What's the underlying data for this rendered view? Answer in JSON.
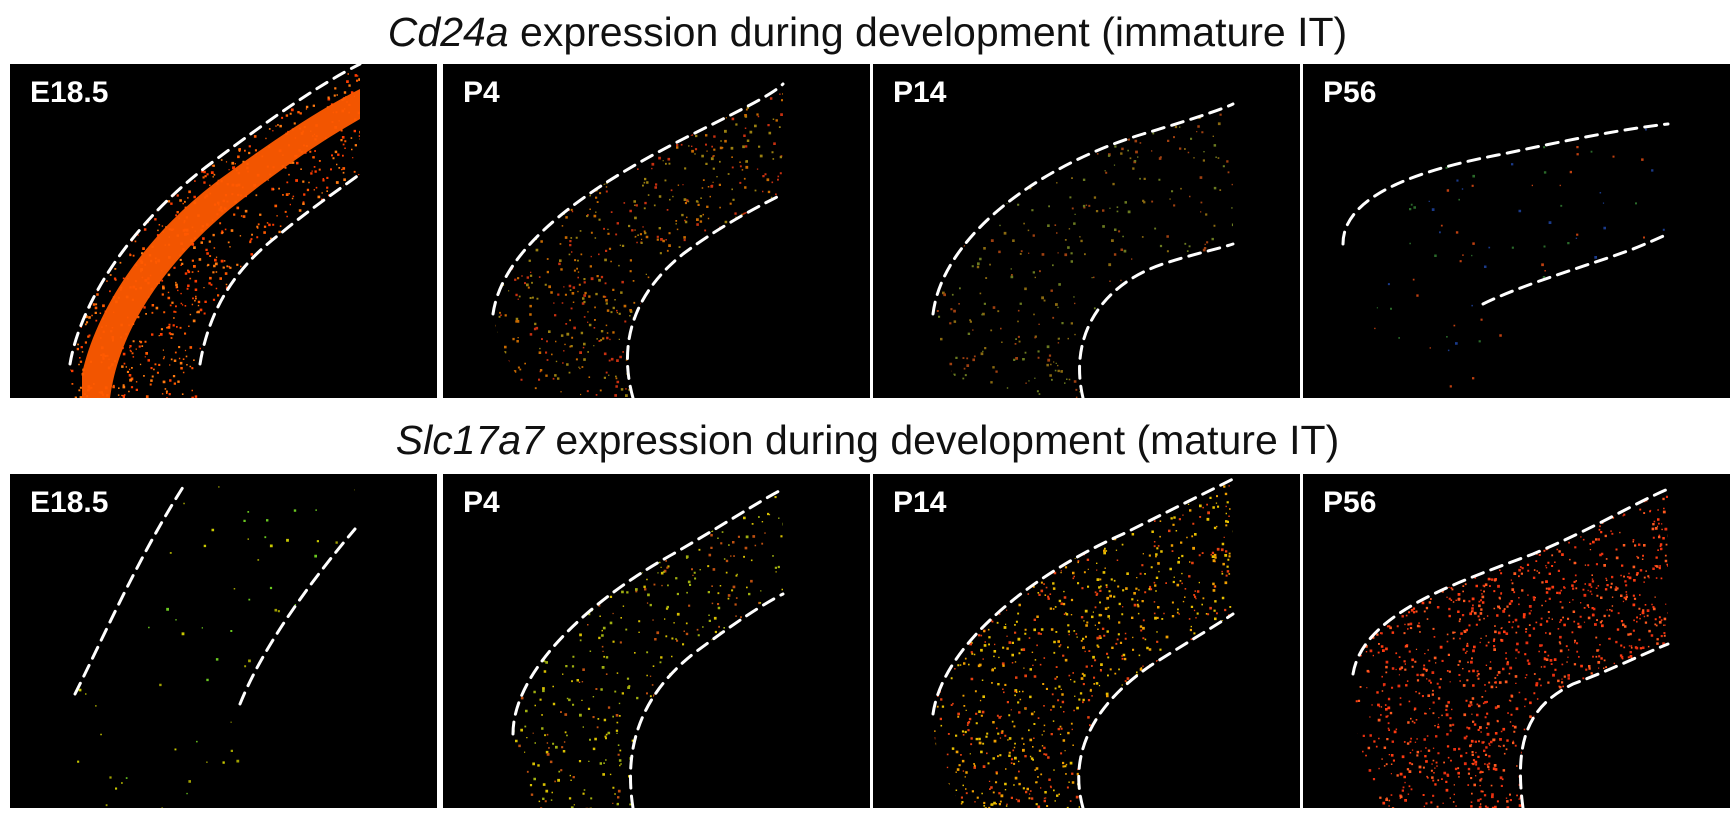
{
  "rows": [
    {
      "gene": "Cd24a",
      "caption": "expression during development (immature IT)",
      "panels": [
        {
          "label": "E18.5",
          "density": 0.9,
          "palette": [
            "#ff5a00",
            "#ff3c00",
            "#ff7a10"
          ]
        },
        {
          "label": "P4",
          "density": 0.55,
          "palette": [
            "#c83010",
            "#9a8010",
            "#c86a00"
          ]
        },
        {
          "label": "P14",
          "density": 0.3,
          "palette": [
            "#8a6a10",
            "#a04010",
            "#6a7a20"
          ]
        },
        {
          "label": "P56",
          "density": 0.06,
          "palette": [
            "#1a3a8a",
            "#c04010",
            "#2a6a2a"
          ]
        }
      ]
    },
    {
      "gene": "Slc17a7",
      "caption": "expression during development (mature IT)",
      "panels": [
        {
          "label": "E18.5",
          "density": 0.04,
          "palette": [
            "#c8c800",
            "#6ac820",
            "#a0a000"
          ]
        },
        {
          "label": "P4",
          "density": 0.4,
          "palette": [
            "#d8c000",
            "#c05010",
            "#a0b010"
          ]
        },
        {
          "label": "P14",
          "density": 0.75,
          "palette": [
            "#e8c000",
            "#e84010",
            "#f0a000"
          ]
        },
        {
          "label": "P56",
          "density": 0.95,
          "palette": [
            "#ff3a10",
            "#e83010",
            "#ff5a20"
          ]
        }
      ]
    }
  ]
}
